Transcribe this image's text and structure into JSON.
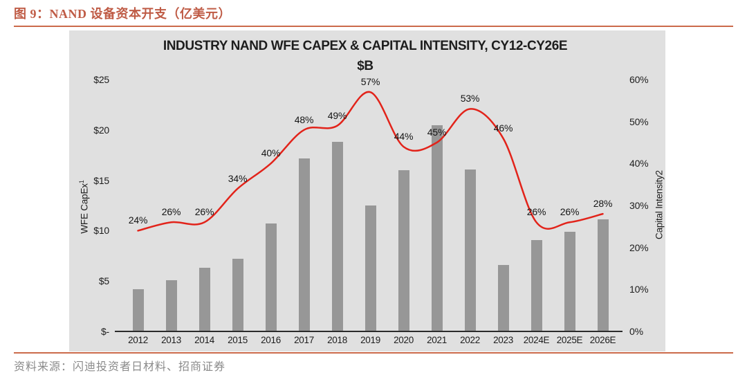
{
  "figure": {
    "caption": "图 9：NAND 设备资本开支（亿美元）",
    "source": "资料来源：闪迪投资者日材料、招商证券"
  },
  "colors": {
    "caption_text": "#bf5b45",
    "rule": "#cb6a4a",
    "panel_bg": "#e0e0e0",
    "bar": "#979797",
    "line": "#e2231a",
    "axis_line": "#2b2b2b",
    "chart_text": "#1d1d1d",
    "source_text": "#8a8a8a"
  },
  "chart_data": {
    "type": "combo-bar-line",
    "title": "INDUSTRY NAND WFE CAPEX & CAPITAL INTENSITY, CY12-CY26E",
    "subtitle": "$B",
    "categories": [
      "2012",
      "2013",
      "2014",
      "2015",
      "2016",
      "2017",
      "2018",
      "2019",
      "2020",
      "2021",
      "2022",
      "2023",
      "2024E",
      "2025E",
      "2026E"
    ],
    "series": [
      {
        "name": "WFE CapEx ($B)",
        "type": "bar",
        "axis": "left",
        "color": "#979797",
        "values": [
          4.2,
          5.1,
          6.3,
          7.2,
          10.7,
          17.2,
          18.8,
          12.5,
          16.0,
          20.5,
          16.1,
          6.6,
          9.1,
          9.9,
          11.1
        ]
      },
      {
        "name": "Capital Intensity (%)",
        "type": "line",
        "axis": "right",
        "color": "#e2231a",
        "smooth": true,
        "values": [
          24,
          26,
          26,
          34,
          40,
          48,
          49,
          57,
          44,
          45,
          53,
          46,
          26,
          26,
          28
        ],
        "point_labels": [
          "24%",
          "26%",
          "26%",
          "34%",
          "40%",
          "48%",
          "49%",
          "57%",
          "44%",
          "45%",
          "53%",
          "46%",
          "26%",
          "26%",
          "28%"
        ]
      }
    ],
    "left_axis": {
      "label": "WFE CapEx",
      "label_sup": "1",
      "ticks": [
        "$25",
        "$20",
        "$15",
        "$10",
        "$5",
        "$-"
      ],
      "range": [
        0,
        25
      ]
    },
    "right_axis": {
      "label": "Capital Intensity2",
      "ticks": [
        "60%",
        "50%",
        "40%",
        "30%",
        "20%",
        "10%",
        "0%"
      ],
      "range": [
        0,
        60
      ]
    },
    "grid": false,
    "legend": "none",
    "plot_bg": "#e0e0e0"
  }
}
